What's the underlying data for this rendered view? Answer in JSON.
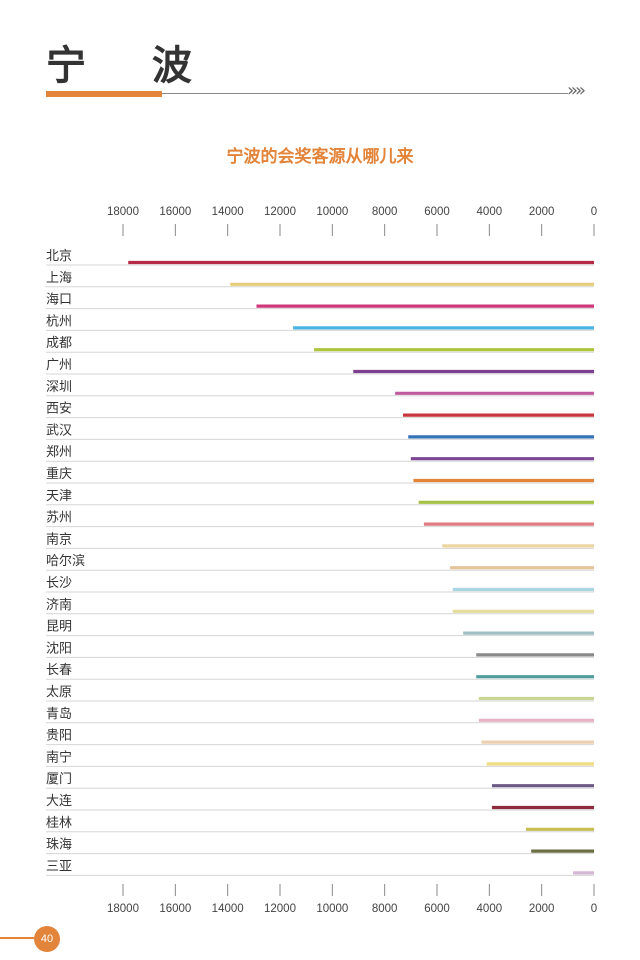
{
  "page": {
    "title": "宁 波",
    "page_number": "40",
    "accent_color": "#e2843a",
    "chevrons": "»»"
  },
  "chart_data": {
    "type": "bar",
    "orientation": "horizontal",
    "title": "宁波的会奖客源从哪儿来",
    "title_color": "#e2843a",
    "x_direction": "reversed",
    "xlim": [
      0,
      18000
    ],
    "ticks": [
      18000,
      16000,
      14000,
      12000,
      10000,
      8000,
      6000,
      4000,
      2000,
      0
    ],
    "axis_positions": [
      "top",
      "bottom"
    ],
    "categories": [
      "北京",
      "上海",
      "海口",
      "杭州",
      "成都",
      "广州",
      "深圳",
      "西安",
      "武汉",
      "郑州",
      "重庆",
      "天津",
      "苏州",
      "南京",
      "哈尔滨",
      "长沙",
      "济南",
      "昆明",
      "沈阳",
      "长春",
      "太原",
      "青岛",
      "贵阳",
      "南宁",
      "厦门",
      "大连",
      "桂林",
      "珠海",
      "三亚"
    ],
    "values": [
      17800,
      13900,
      12900,
      11500,
      10700,
      9200,
      7600,
      7300,
      7100,
      7000,
      6900,
      6700,
      6500,
      5800,
      5500,
      5400,
      5400,
      5000,
      4500,
      4500,
      4400,
      4400,
      4300,
      4100,
      3900,
      3900,
      2600,
      2400,
      800
    ],
    "colors": [
      "#b52a45",
      "#e5cd7a",
      "#cf3779",
      "#4ab4e3",
      "#adc53a",
      "#7a3f8f",
      "#c05b9f",
      "#c7353d",
      "#3573b8",
      "#7c4596",
      "#e2843a",
      "#a5c244",
      "#e07b82",
      "#ecd5a0",
      "#e6c299",
      "#a8d7e2",
      "#e5dc9b",
      "#9fbfc2",
      "#8a8a8a",
      "#4f9e9e",
      "#c9d597",
      "#e7b1c6",
      "#ecd0b1",
      "#f0de84",
      "#6b5a85",
      "#8e2b3f",
      "#c6bd53",
      "#6a6e42",
      "#d4b7d3"
    ]
  }
}
